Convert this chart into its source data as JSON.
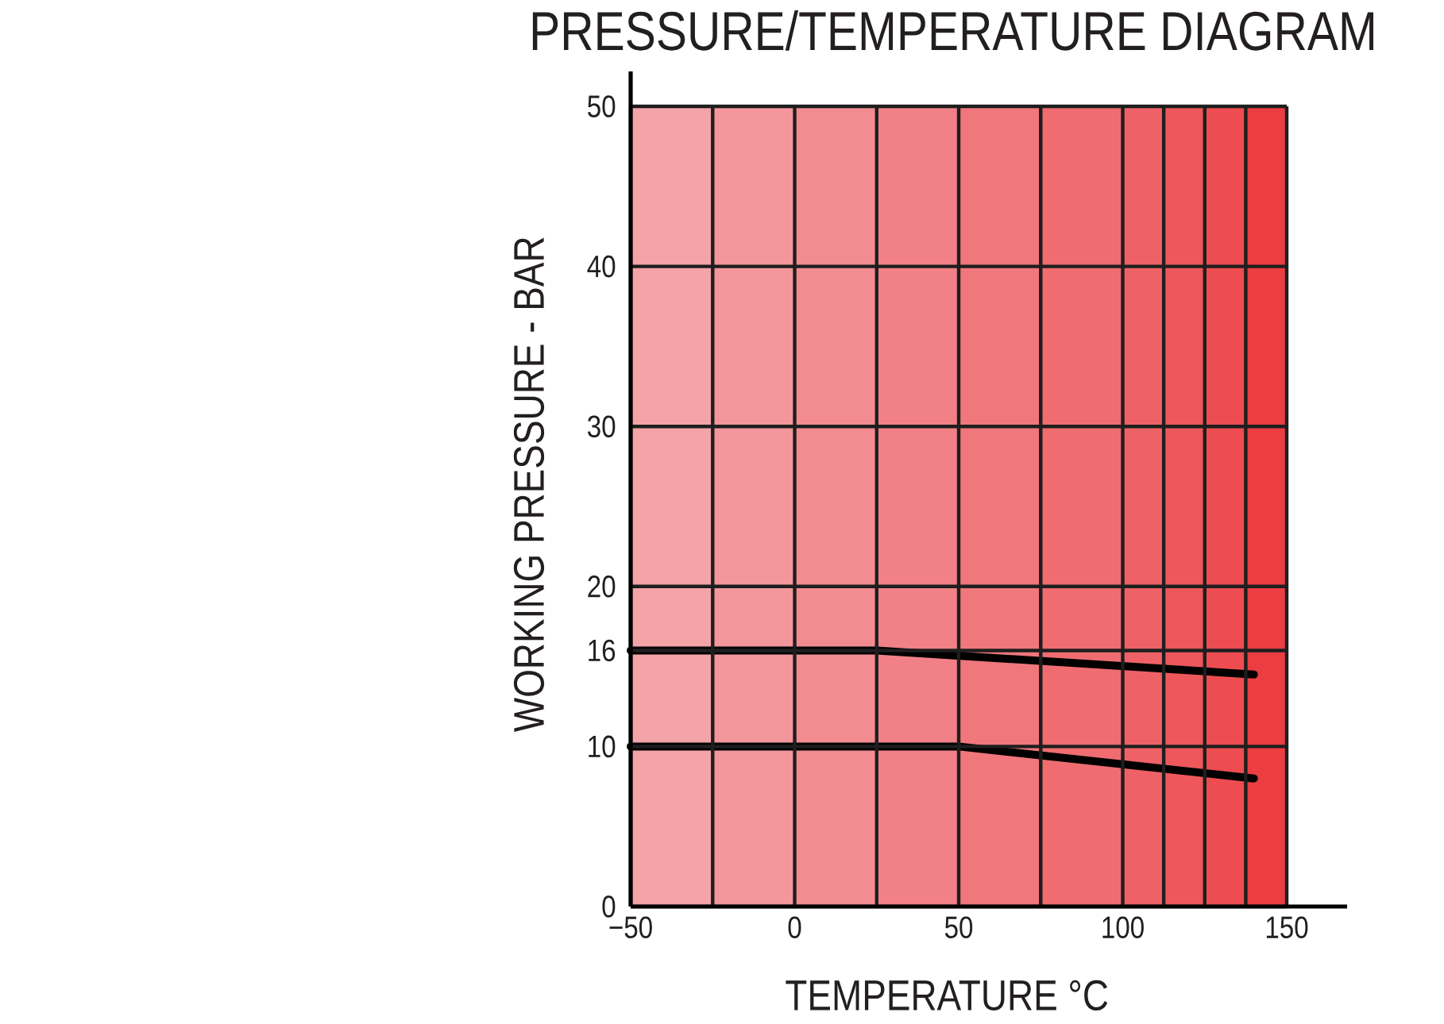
{
  "chart_data": {
    "type": "line",
    "title": "PRESSURE/TEMPERATURE DIAGRAM",
    "xlabel": "TEMPERATURE °C",
    "ylabel": "WORKING PRESSURE - BAR",
    "series": [
      {
        "color": "#000000",
        "x": [
          -50,
          25,
          140
        ],
        "values": [
          16,
          16,
          14.5
        ]
      },
      {
        "color": "#000000",
        "x": [
          -50,
          50,
          140
        ],
        "values": [
          10,
          10,
          8
        ]
      }
    ],
    "xlim": [
      -50,
      150
    ],
    "ylim": [
      0,
      50
    ],
    "xticks": [
      {
        "value": -50,
        "label": "−50"
      },
      {
        "value": -25,
        "label": null
      },
      0,
      {
        "value": 25,
        "label": null
      },
      50,
      {
        "value": 75,
        "label": null
      },
      100,
      {
        "value": 112.5,
        "label": null
      },
      {
        "value": 125,
        "label": null
      },
      {
        "value": 137.5,
        "label": null
      },
      150
    ],
    "yticks": [
      0,
      10,
      16,
      20,
      30,
      40,
      50
    ],
    "grid": true,
    "bands": [
      {
        "axis": "x",
        "from": -50,
        "to": -25,
        "color": "#f4a3a8"
      },
      {
        "axis": "x",
        "from": -25,
        "to": 0,
        "color": "#f3979c"
      },
      {
        "axis": "x",
        "from": 0,
        "to": 25,
        "color": "#f28c91"
      },
      {
        "axis": "x",
        "from": 25,
        "to": 50,
        "color": "#f18187"
      },
      {
        "axis": "x",
        "from": 50,
        "to": 75,
        "color": "#f0777c"
      },
      {
        "axis": "x",
        "from": 75,
        "to": 100,
        "color": "#ef6c71"
      },
      {
        "axis": "x",
        "from": 100,
        "to": 112.5,
        "color": "#ee6267"
      },
      {
        "axis": "x",
        "from": 112.5,
        "to": 125,
        "color": "#ee575c"
      },
      {
        "axis": "x",
        "from": 125,
        "to": 137.5,
        "color": "#ed4c51"
      },
      {
        "axis": "x",
        "from": 137.5,
        "to": 150,
        "color": "#ec3d42"
      }
    ]
  }
}
